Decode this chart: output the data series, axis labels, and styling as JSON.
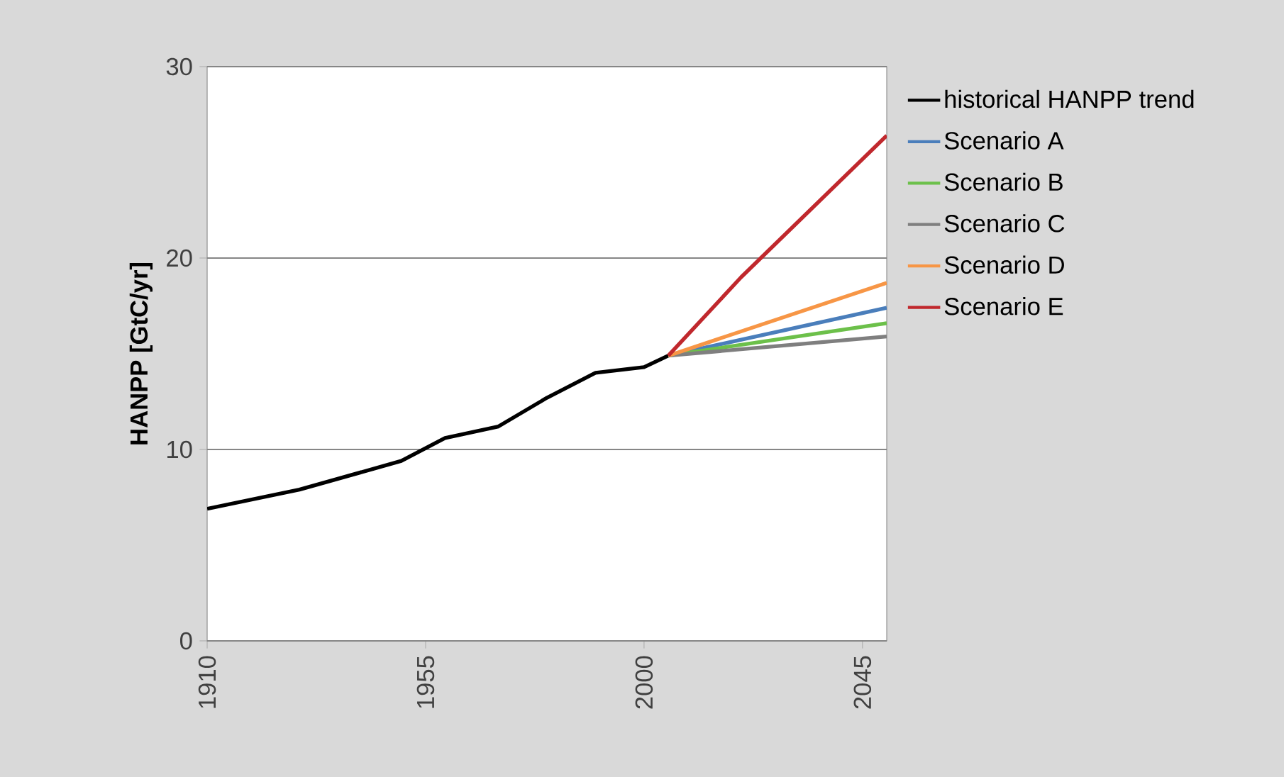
{
  "chart_data": {
    "type": "line",
    "ylabel": "HANPP [GtC/yr]",
    "xlim": [
      1910,
      2050
    ],
    "xticks": [
      1910,
      1955,
      2000,
      2045
    ],
    "ylim": [
      0,
      30
    ],
    "yticks": [
      0,
      10,
      20,
      30
    ],
    "grid": "y",
    "legend": "right",
    "line_style": "solid",
    "series": [
      {
        "name": "historical HANPP trend",
        "color": "#000000",
        "x": [
          1910,
          1929,
          1950,
          1959,
          1970,
          1980,
          1990,
          2000,
          2005
        ],
        "values": [
          6.9,
          7.9,
          9.4,
          10.6,
          11.2,
          12.7,
          14.0,
          14.3,
          14.9
        ]
      },
      {
        "name": "Scenario A",
        "color": "#4a7ebb",
        "x": [
          2005,
          2050
        ],
        "values": [
          14.9,
          17.4
        ]
      },
      {
        "name": "Scenario B",
        "color": "#6cc04a",
        "x": [
          2005,
          2050
        ],
        "values": [
          14.9,
          16.6
        ]
      },
      {
        "name": "Scenario C",
        "color": "#7f7f7f",
        "x": [
          2005,
          2050
        ],
        "values": [
          14.9,
          15.9
        ]
      },
      {
        "name": "Scenario D",
        "color": "#f79646",
        "x": [
          2005,
          2050
        ],
        "values": [
          14.9,
          18.7
        ]
      },
      {
        "name": "Scenario E",
        "color": "#c0282d",
        "x": [
          2005,
          2020,
          2050
        ],
        "values": [
          14.9,
          19.0,
          26.4
        ]
      }
    ]
  }
}
